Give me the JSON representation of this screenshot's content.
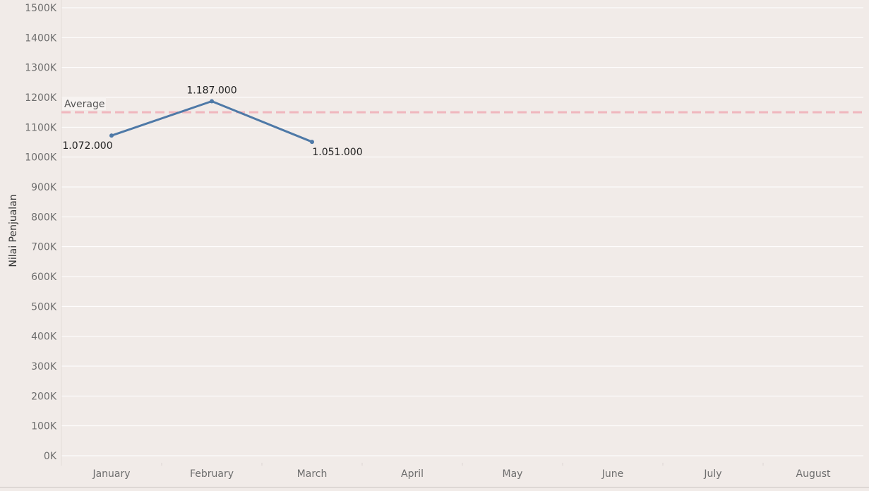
{
  "chart_data": {
    "type": "line",
    "categories": [
      "January",
      "February",
      "March",
      "April",
      "May",
      "June",
      "July",
      "August"
    ],
    "series": [
      {
        "values": [
          1072000,
          1187000,
          1051000,
          null,
          null,
          null,
          null,
          null
        ]
      }
    ],
    "data_labels": [
      "1.072.000",
      "1.187.000",
      "1.051.000"
    ],
    "ylabel": "Nilai Penjualan",
    "xlabel": "",
    "ylim": [
      0,
      1500000
    ],
    "y_ticks": [
      0,
      100000,
      200000,
      300000,
      400000,
      500000,
      600000,
      700000,
      800000,
      900000,
      1000000,
      1100000,
      1200000,
      1300000,
      1400000,
      1500000
    ],
    "y_tick_labels": [
      "0K",
      "100K",
      "200K",
      "300K",
      "400K",
      "500K",
      "600K",
      "700K",
      "800K",
      "900K",
      "1000K",
      "1100K",
      "1200K",
      "1300K",
      "1400K",
      "1500K"
    ],
    "reference_line": {
      "label": "Average",
      "value": 1150000
    },
    "grid": true,
    "colors": {
      "line": "#4e79a7",
      "average": "#f0b6bd",
      "background": "#f1ebe8",
      "gridline": "#ffffff"
    }
  }
}
